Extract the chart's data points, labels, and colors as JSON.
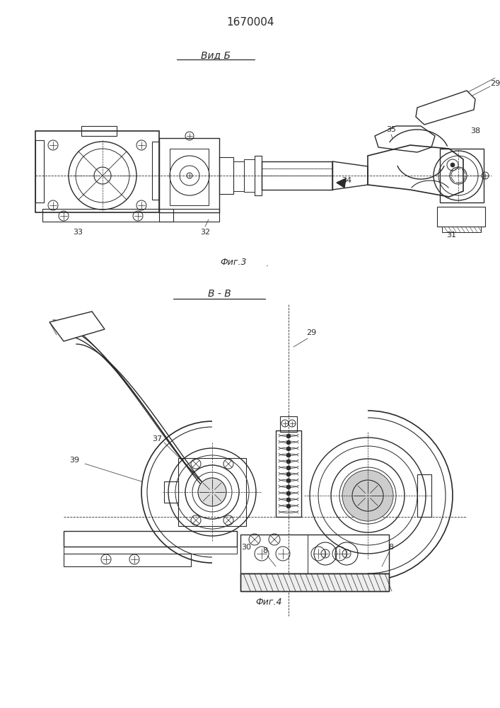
{
  "title": "1670004",
  "bg_color": "#ffffff",
  "line_color": "#2a2a2a",
  "fig3_label": "Вид Б",
  "fig3_caption": "Фиг.3",
  "fig4_label": "В - В",
  "fig4_caption": "Фиг.4"
}
